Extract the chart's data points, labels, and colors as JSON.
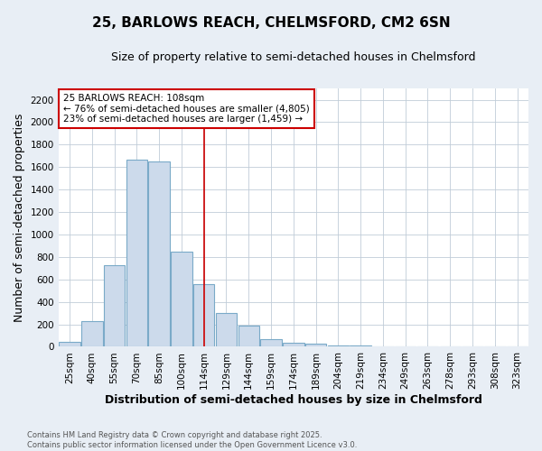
{
  "title1": "25, BARLOWS REACH, CHELMSFORD, CM2 6SN",
  "title2": "Size of property relative to semi-detached houses in Chelmsford",
  "xlabel": "Distribution of semi-detached houses by size in Chelmsford",
  "ylabel": "Number of semi-detached properties",
  "categories": [
    "25sqm",
    "40sqm",
    "55sqm",
    "70sqm",
    "85sqm",
    "100sqm",
    "114sqm",
    "129sqm",
    "144sqm",
    "159sqm",
    "174sqm",
    "189sqm",
    "204sqm",
    "219sqm",
    "234sqm",
    "249sqm",
    "263sqm",
    "278sqm",
    "293sqm",
    "308sqm",
    "323sqm"
  ],
  "values": [
    45,
    225,
    730,
    1670,
    1650,
    850,
    555,
    300,
    185,
    70,
    35,
    25,
    15,
    10,
    5,
    3,
    1,
    1,
    0,
    0,
    0
  ],
  "bar_color": "#ccdaeb",
  "bar_edge_color": "#7aaac8",
  "red_line_x": 6.0,
  "annotation_text": "25 BARLOWS REACH: 108sqm\n← 76% of semi-detached houses are smaller (4,805)\n23% of semi-detached houses are larger (1,459) →",
  "annotation_box_color": "#ffffff",
  "annotation_box_edge": "#cc0000",
  "ylim": [
    0,
    2300
  ],
  "yticks": [
    0,
    200,
    400,
    600,
    800,
    1000,
    1200,
    1400,
    1600,
    1800,
    2000,
    2200
  ],
  "footnote": "Contains HM Land Registry data © Crown copyright and database right 2025.\nContains public sector information licensed under the Open Government Licence v3.0.",
  "background_color": "#e8eef5",
  "plot_background": "#ffffff",
  "grid_color": "#c0ccd8",
  "title_fontsize": 11,
  "subtitle_fontsize": 9,
  "tick_fontsize": 7.5,
  "label_fontsize": 9,
  "annot_fontsize": 7.5
}
